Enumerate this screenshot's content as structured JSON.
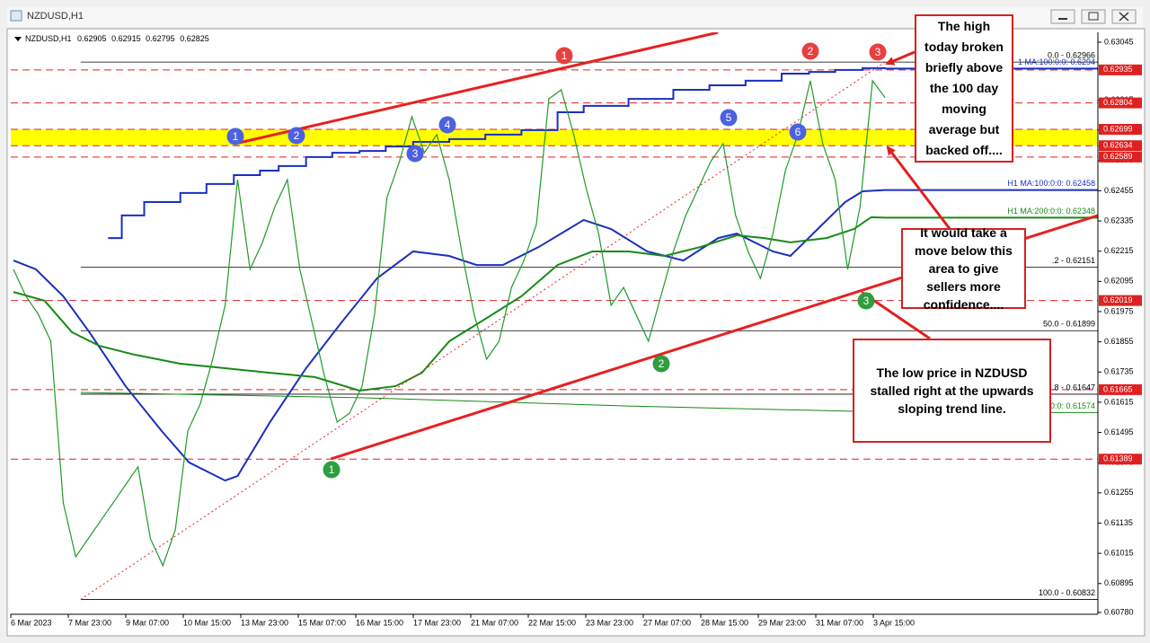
{
  "window": {
    "title": "NZDUSD,H1"
  },
  "chart_data": {
    "type": "line",
    "symbol_info": "NZDUSD,H1",
    "last_bar": [
      0.62905,
      0.62915,
      0.62795,
      0.62825
    ],
    "x_tick_labels": [
      "6 Mar 2023",
      "7 Mar 23:00",
      "9 Mar 07:00",
      "10 Mar 15:00",
      "13 Mar 23:00",
      "15 Mar 07:00",
      "16 Mar 15:00",
      "17 Mar 23:00",
      "21 Mar 07:00",
      "22 Mar 15:00",
      "23 Mar 23:00",
      "27 Mar 07:00",
      "28 Mar 15:00",
      "29 Mar 23:00",
      "31 Mar 07:00",
      "3 Apr 15:00"
    ],
    "xlim": [
      0,
      87.1
    ],
    "ylim": [
      0.6078,
      0.63045
    ],
    "yticks": [
      {
        "value": 0.6078,
        "label": "0.60780"
      },
      0.60895,
      0.61015,
      0.61135,
      0.61255,
      0.61375,
      0.61495,
      0.61615,
      0.61735,
      0.61855,
      0.61975,
      0.62095,
      0.62215,
      0.62335,
      0.62455,
      0.62575,
      0.62695,
      0.62815,
      0.63045
    ],
    "series": [
      {
        "name": "NZDUSD",
        "color": "#1f9a2a",
        "values": [
          0.62143,
          0.62036,
          0.61964,
          0.61857,
          0.61215,
          0.61001,
          0.61073,
          0.61144,
          0.61215,
          0.61287,
          0.61358,
          0.61073,
          0.60966,
          0.61108,
          0.61501,
          0.61608,
          0.61786,
          0.62,
          0.62499,
          0.62143,
          0.6225,
          0.62392,
          0.62499,
          0.62143,
          0.61929,
          0.61715,
          0.61536,
          0.61572,
          0.61679,
          0.61964,
          0.62428,
          0.62571,
          0.62749,
          0.62606,
          0.62678,
          0.62499,
          0.62214,
          0.61964,
          0.61786,
          0.61857,
          0.62071,
          0.62178,
          0.62321,
          0.6282,
          0.62856,
          0.62678,
          0.62464,
          0.62285,
          0.62,
          0.62071,
          0.61964,
          0.61857,
          0.62036,
          0.62214,
          0.62357,
          0.62464,
          0.62571,
          0.62642,
          0.62357,
          0.62214,
          0.62107,
          0.62285,
          0.62535,
          0.62678,
          0.62892,
          0.62642,
          0.62499,
          0.62143,
          0.62392,
          0.62892,
          0.62825
        ]
      }
    ],
    "indicators": [
      {
        "label": "1 MA:100:0:0: 0.6294",
        "level": 0.6294,
        "color": "#1a2fc0",
        "step": true,
        "x": [
          7.6,
          8.7,
          10.5,
          13.4,
          15.5,
          17.7,
          19.8,
          21.3,
          23.5,
          25.6,
          27.8,
          29.9,
          32.1,
          35,
          37.9,
          40.8,
          43.7,
          45.8,
          49.4,
          53,
          55.9,
          58.8,
          61.7,
          63.9,
          66,
          68.2,
          70
        ],
        "values": [
          0.62267,
          0.62357,
          0.6241,
          0.62446,
          0.62482,
          0.62517,
          0.62535,
          0.62553,
          0.62589,
          0.62606,
          0.62613,
          0.62631,
          0.62649,
          0.6266,
          0.62678,
          0.62696,
          0.62767,
          0.62792,
          0.6282,
          0.62856,
          0.62874,
          0.62892,
          0.6292,
          0.62927,
          0.62935,
          0.62942,
          0.62945
        ]
      },
      {
        "label": "H1 MA:100:0:0: 0.62458",
        "level": 0.62458,
        "color": "#1a2fc0",
        "x": [
          0,
          1.8,
          4,
          6.1,
          9,
          11.9,
          14.1,
          17,
          18,
          20.6,
          23.5,
          26.3,
          29.2,
          32.1,
          35,
          37.2,
          39.3,
          42.2,
          45.8,
          48,
          50.9,
          53.8,
          56.6,
          58.1,
          61,
          62.4,
          64.6,
          66.8,
          68.2,
          70
        ],
        "values": [
          0.62178,
          0.62143,
          0.62036,
          0.61893,
          0.61679,
          0.61501,
          0.61376,
          0.61304,
          0.61322,
          0.61536,
          0.6175,
          0.61929,
          0.62107,
          0.62214,
          0.62196,
          0.6216,
          0.6216,
          0.62232,
          0.62339,
          0.62303,
          0.62214,
          0.62178,
          0.62267,
          0.62285,
          0.62214,
          0.62196,
          0.62303,
          0.6241,
          0.62453,
          0.62458
        ]
      },
      {
        "label": "H1 MA:200:0:0: 0.62348",
        "level": 0.62348,
        "color": "#178a17",
        "x": [
          0,
          2.5,
          4.7,
          6.9,
          9.7,
          13.4,
          17,
          20.6,
          24.2,
          27.8,
          30.7,
          32.8,
          35,
          37.9,
          40.8,
          43.7,
          46.5,
          49.4,
          52.3,
          55.2,
          58.1,
          60.3,
          62.4,
          65.3,
          67.5,
          68.9,
          70
        ],
        "values": [
          0.62053,
          0.62018,
          0.61893,
          0.61839,
          0.61804,
          0.61768,
          0.6175,
          0.61732,
          0.61715,
          0.61661,
          0.61679,
          0.61732,
          0.61857,
          0.61946,
          0.62036,
          0.6216,
          0.62214,
          0.62214,
          0.62196,
          0.62232,
          0.62278,
          0.62267,
          0.6225,
          0.62267,
          0.62303,
          0.6235,
          0.62348
        ]
      },
      {
        "label": "0:0: 0.61574",
        "level": 0.61574,
        "color": "#178a17",
        "x": [
          5.4,
          28,
          49.4,
          67.5
        ],
        "values": [
          0.61654,
          0.61633,
          0.616,
          0.61579
        ]
      }
    ],
    "price_levels": [
      0.62935,
      0.62804,
      0.62699,
      0.62634,
      0.62589,
      0.62019,
      0.61665,
      0.61389
    ],
    "level_color": "#e02020",
    "highlight_band": {
      "color": "#ffff00"
    },
    "fib_levels": [
      {
        "value": 0.62966,
        "label": "0.0 - 0.62966"
      },
      {
        "value": 0.62151,
        "label": ".2 - 0.62151"
      },
      {
        "value": 0.61899,
        "label": "50.0 - 0.61899"
      },
      {
        "value": 0.61647,
        "label": ".8 - 0.61647"
      },
      {
        "value": 0.60832,
        "label": "100.0 - 0.60832"
      }
    ],
    "trendlines": [
      {
        "color": "#e82020",
        "x": [
          17.8,
          56.6
        ],
        "values": [
          0.62642,
          0.63084
        ]
      },
      {
        "color": "#e82020",
        "x": [
          25.5,
          87.1
        ],
        "values": [
          0.6139,
          0.62357
        ]
      },
      {
        "color": "#e82020",
        "dotted": true,
        "x": [
          5.4,
          70
        ],
        "values": [
          0.60832,
          0.62966
        ]
      }
    ],
    "markers": [
      {
        "label": "1",
        "color": "#e84040"
      },
      {
        "label": "2",
        "color": "#e84040"
      },
      {
        "label": "3",
        "color": "#e84040"
      },
      {
        "label": "1",
        "color": "#4b62e0"
      },
      {
        "label": "2",
        "color": "#4b62e0"
      },
      {
        "label": "3",
        "color": "#4b62e0"
      },
      {
        "label": "4",
        "color": "#4b62e0"
      },
      {
        "label": "5",
        "color": "#4b62e0"
      },
      {
        "label": "6",
        "color": "#4b62e0"
      },
      {
        "label": "1",
        "color": "#2e9e3e"
      },
      {
        "label": "2",
        "color": "#2e9e3e"
      },
      {
        "label": "3",
        "color": "#2e9e3e"
      }
    ],
    "callouts": [
      {
        "text": "The high today broken briefly above the 100 day moving average but backed off...."
      },
      {
        "text": "It would take a move below this area to give sellers more confidence...."
      },
      {
        "text": "The low price in NZDUSD stalled right at the upwards sloping trend line."
      }
    ]
  }
}
